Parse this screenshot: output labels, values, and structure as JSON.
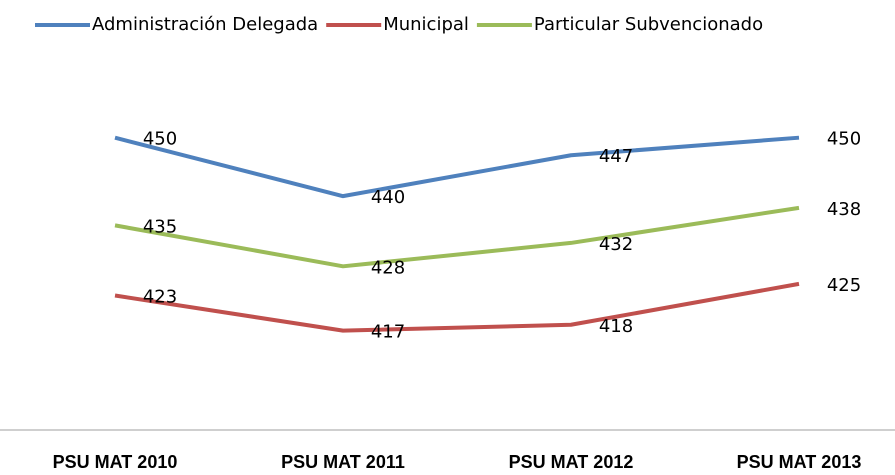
{
  "chart_data": {
    "type": "line",
    "categories": [
      "PSU MAT 2010",
      "PSU MAT 2011",
      "PSU MAT 2012",
      "PSU MAT 2013"
    ],
    "series": [
      {
        "name": "Administración Delegada",
        "color": "#4f81bd",
        "values": [
          450,
          440,
          447,
          450
        ]
      },
      {
        "name": "Municipal",
        "color": "#c0504d",
        "values": [
          423,
          417,
          418,
          425
        ]
      },
      {
        "name": "Particular Subvencionado",
        "color": "#9bbb59",
        "values": [
          435,
          428,
          432,
          438
        ]
      }
    ],
    "ylim": [
      400,
      465
    ],
    "legend": "top",
    "grid": false
  }
}
